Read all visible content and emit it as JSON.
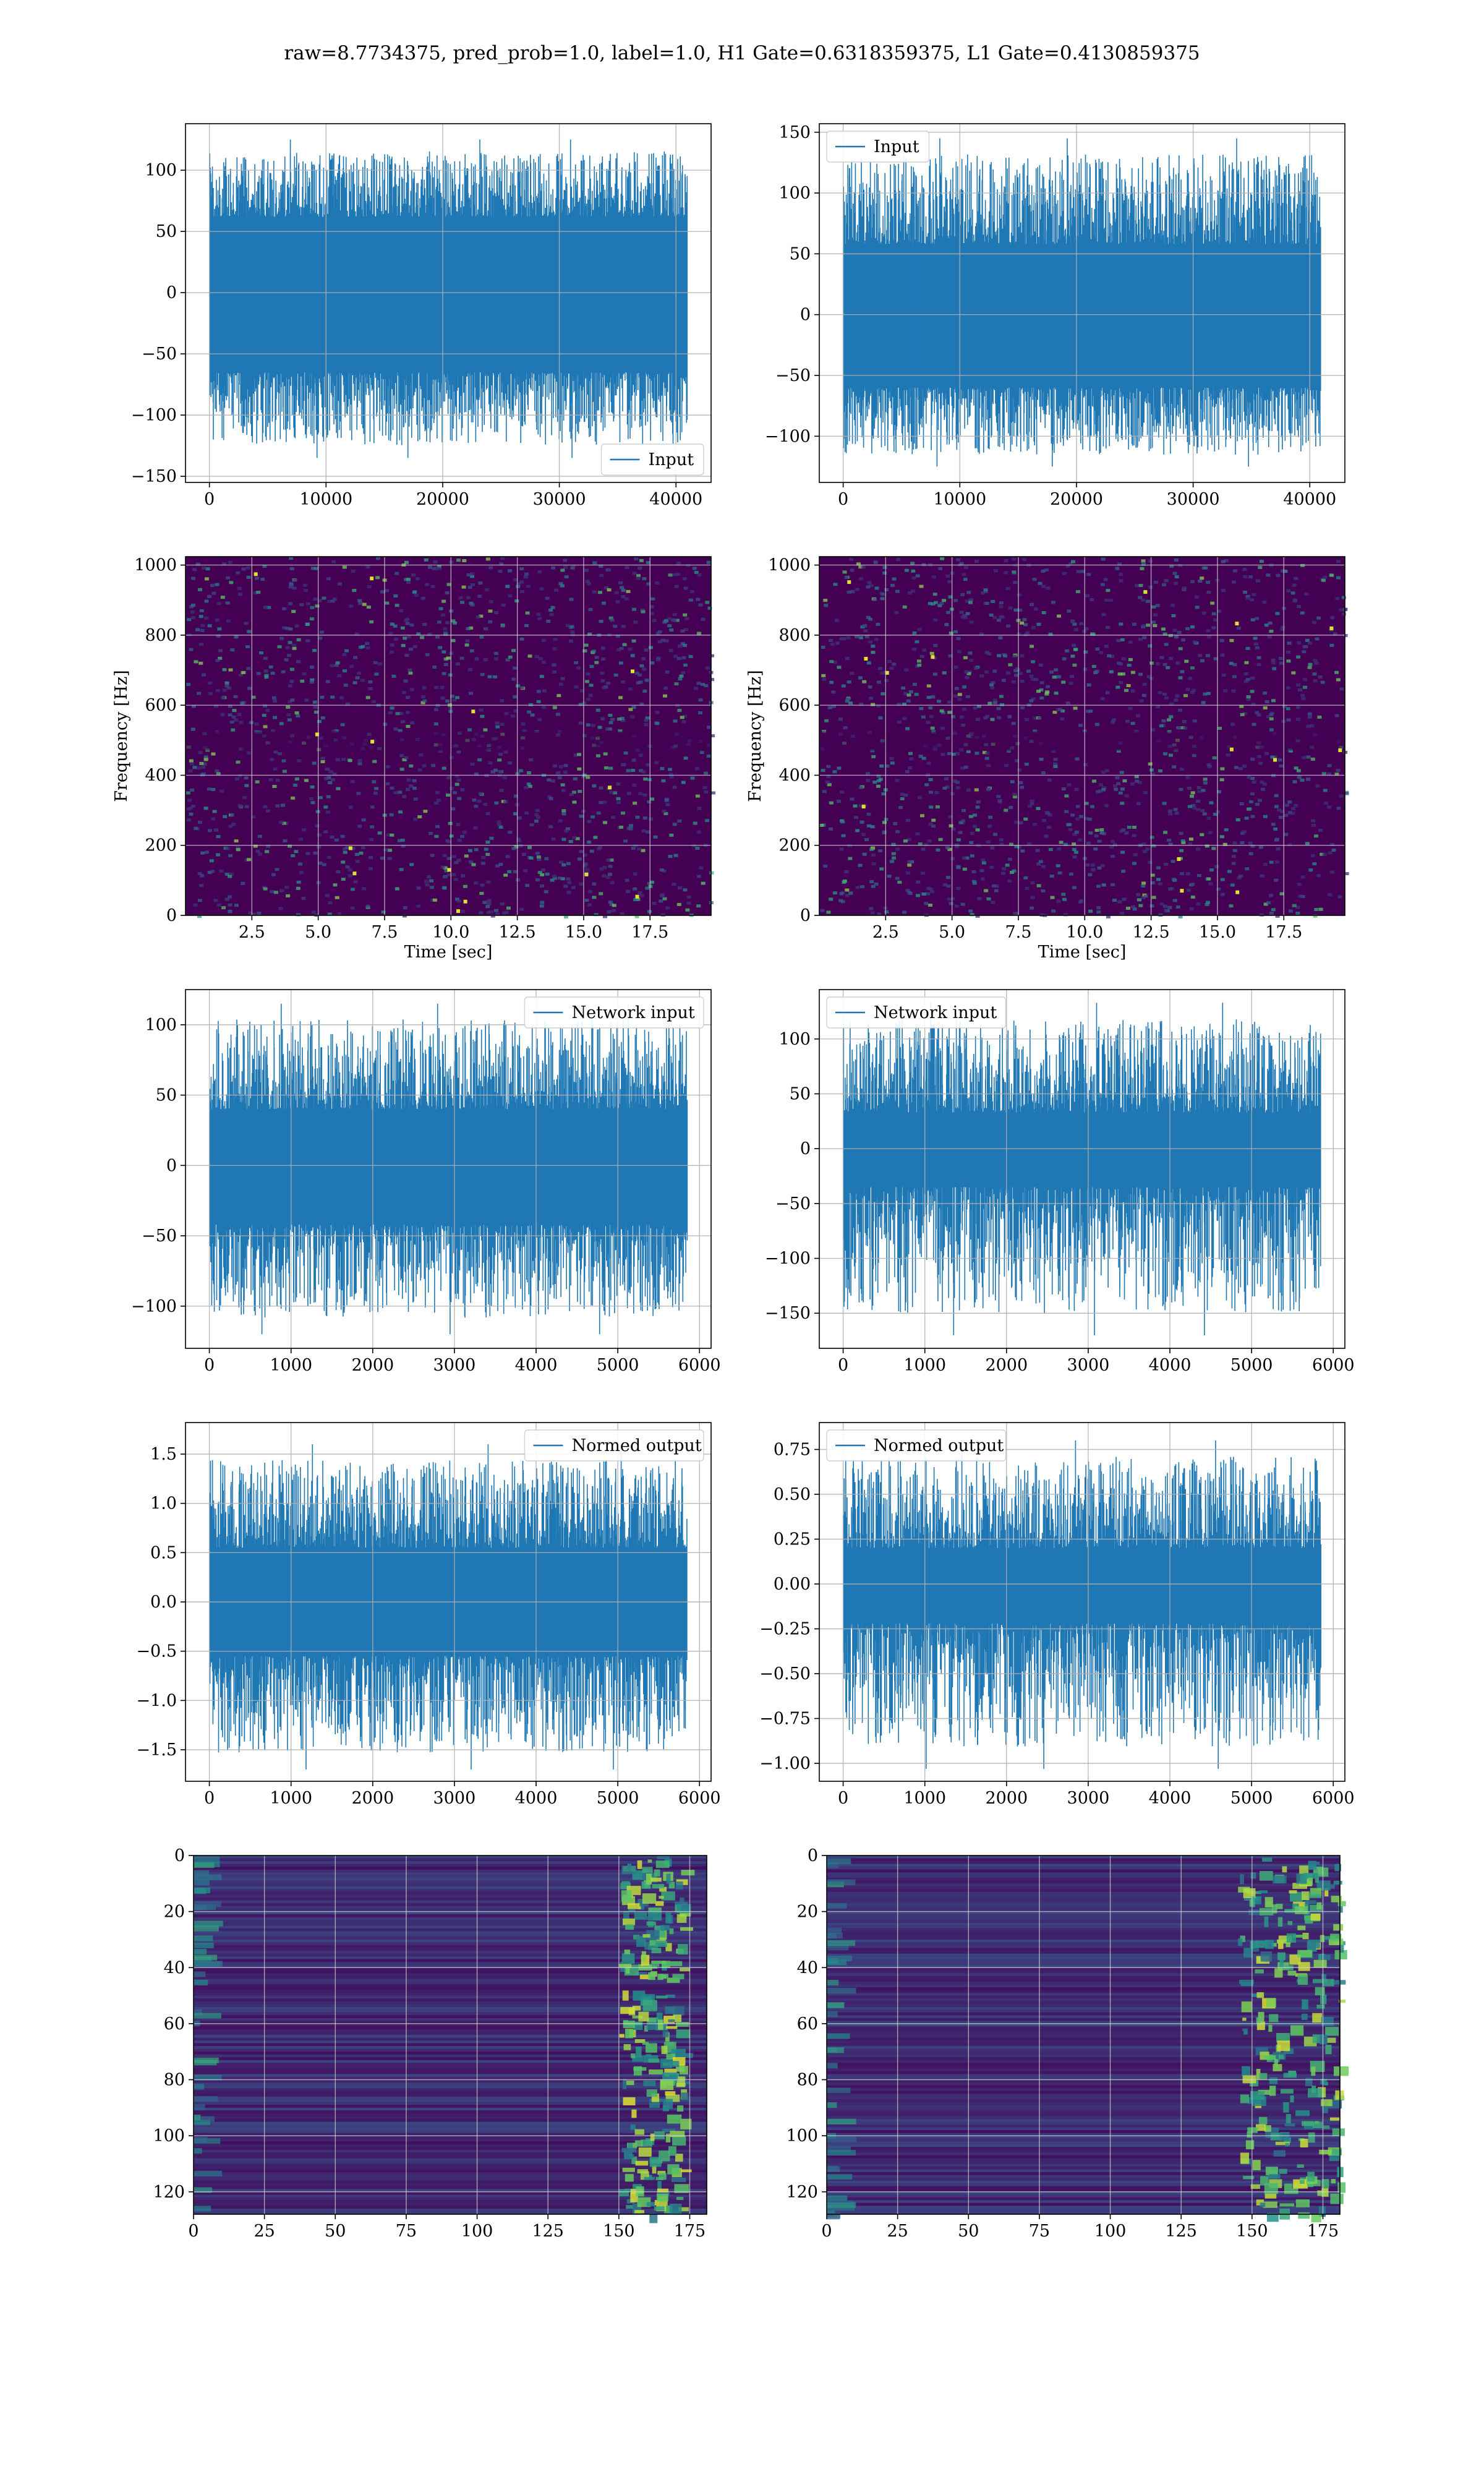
{
  "title": "raw=8.7734375, pred_prob=1.0, label=1.0, H1 Gate=0.6318359375, L1 Gate=0.4130859375",
  "colors": {
    "line": "#1f77b4",
    "grid": "#b0b0b0",
    "viridis_dark": "#440154",
    "viridis_mid": "#21918c",
    "viridis_bright": "#fde725"
  },
  "chart_data": [
    {
      "type": "line",
      "name": "input-h1",
      "grid": true,
      "legend": {
        "entries": [
          "Input"
        ],
        "loc": "lower right"
      },
      "x_range": [
        0,
        40960
      ],
      "xlim": [
        -2048,
        43008
      ],
      "ylim": [
        -155,
        138
      ],
      "xticks": [
        0,
        10000,
        20000,
        30000,
        40000
      ],
      "xticklabels": [
        "0",
        "10000",
        "20000",
        "30000",
        "40000"
      ],
      "yticks": [
        -150,
        -100,
        -50,
        0,
        50,
        100
      ],
      "yticklabels": [
        "−150",
        "−100",
        "−50",
        "0",
        "50",
        "100"
      ],
      "band": [
        -65,
        62
      ],
      "spike_range": [
        -135,
        125
      ],
      "xlabel": "",
      "ylabel": ""
    },
    {
      "type": "line",
      "name": "input-l1",
      "grid": true,
      "legend": {
        "entries": [
          "Input"
        ],
        "loc": "upper left"
      },
      "x_range": [
        0,
        40960
      ],
      "xlim": [
        -2048,
        43008
      ],
      "ylim": [
        -138,
        157
      ],
      "xticks": [
        0,
        10000,
        20000,
        30000,
        40000
      ],
      "xticklabels": [
        "0",
        "10000",
        "20000",
        "30000",
        "40000"
      ],
      "yticks": [
        -100,
        -50,
        0,
        50,
        100,
        150
      ],
      "yticklabels": [
        "−100",
        "−50",
        "0",
        "50",
        "100",
        "150"
      ],
      "band": [
        -60,
        58
      ],
      "spike_range": [
        -125,
        145
      ],
      "xlabel": "",
      "ylabel": ""
    },
    {
      "type": "heatmap",
      "name": "spectrogram-h1",
      "grid": true,
      "xlim": [
        0,
        19.8
      ],
      "ylim": [
        0,
        1024
      ],
      "xticks": [
        2.5,
        5,
        7.5,
        10,
        12.5,
        15,
        17.5
      ],
      "xticklabels": [
        "2.5",
        "5.0",
        "7.5",
        "10.0",
        "12.5",
        "15.0",
        "17.5"
      ],
      "yticks": [
        0,
        200,
        400,
        600,
        800,
        1000
      ],
      "yticklabels": [
        "0",
        "200",
        "400",
        "600",
        "800",
        "1000"
      ],
      "xlabel": "Time [sec]",
      "ylabel": "Frequency [Hz]",
      "colormap": "viridis"
    },
    {
      "type": "heatmap",
      "name": "spectrogram-l1",
      "grid": true,
      "xlim": [
        0,
        19.8
      ],
      "ylim": [
        0,
        1024
      ],
      "xticks": [
        2.5,
        5,
        7.5,
        10,
        12.5,
        15,
        17.5
      ],
      "xticklabels": [
        "2.5",
        "5.0",
        "7.5",
        "10.0",
        "12.5",
        "15.0",
        "17.5"
      ],
      "yticks": [
        0,
        200,
        400,
        600,
        800,
        1000
      ],
      "yticklabels": [
        "0",
        "200",
        "400",
        "600",
        "800",
        "1000"
      ],
      "xlabel": "Time [sec]",
      "ylabel": "Frequency [Hz]",
      "colormap": "viridis"
    },
    {
      "type": "line",
      "name": "network-input-h1",
      "grid": true,
      "legend": {
        "entries": [
          "Network input"
        ],
        "loc": "upper right"
      },
      "x_range": [
        0,
        5850
      ],
      "xlim": [
        -292,
        6142
      ],
      "ylim": [
        -130,
        125
      ],
      "xticks": [
        0,
        1000,
        2000,
        3000,
        4000,
        5000,
        6000
      ],
      "xticklabels": [
        "0",
        "1000",
        "2000",
        "3000",
        "4000",
        "5000",
        "6000"
      ],
      "yticks": [
        -100,
        -50,
        0,
        50,
        100
      ],
      "yticklabels": [
        "−100",
        "−50",
        "0",
        "50",
        "100"
      ],
      "band": [
        -42,
        40
      ],
      "spike_range": [
        -120,
        115
      ],
      "xlabel": "",
      "ylabel": ""
    },
    {
      "type": "line",
      "name": "network-input-l1",
      "grid": true,
      "legend": {
        "entries": [
          "Network input"
        ],
        "loc": "upper left"
      },
      "x_range": [
        0,
        5850
      ],
      "xlim": [
        -292,
        6142
      ],
      "ylim": [
        -182,
        145
      ],
      "xticks": [
        0,
        1000,
        2000,
        3000,
        4000,
        5000,
        6000
      ],
      "xticklabels": [
        "0",
        "1000",
        "2000",
        "3000",
        "4000",
        "5000",
        "6000"
      ],
      "yticks": [
        -150,
        -100,
        -50,
        0,
        50,
        100
      ],
      "yticklabels": [
        "−150",
        "−100",
        "−50",
        "0",
        "50",
        "100"
      ],
      "band": [
        -35,
        33
      ],
      "spike_range": [
        -170,
        133
      ],
      "xlabel": "",
      "ylabel": ""
    },
    {
      "type": "line",
      "name": "normed-output-h1",
      "grid": true,
      "legend": {
        "entries": [
          "Normed output"
        ],
        "loc": "upper right"
      },
      "x_range": [
        0,
        5850
      ],
      "xlim": [
        -292,
        6142
      ],
      "ylim": [
        -1.82,
        1.82
      ],
      "xticks": [
        0,
        1000,
        2000,
        3000,
        4000,
        5000,
        6000
      ],
      "xticklabels": [
        "0",
        "1000",
        "2000",
        "3000",
        "4000",
        "5000",
        "6000"
      ],
      "yticks": [
        -1.5,
        -1.0,
        -0.5,
        0.0,
        0.5,
        1.0,
        1.5
      ],
      "yticklabels": [
        "−1.5",
        "−1.0",
        "−0.5",
        "0.0",
        "0.5",
        "1.0",
        "1.5"
      ],
      "band": [
        -0.55,
        0.55
      ],
      "spike_range": [
        -1.7,
        1.6
      ],
      "xlabel": "",
      "ylabel": ""
    },
    {
      "type": "line",
      "name": "normed-output-l1",
      "grid": true,
      "legend": {
        "entries": [
          "Normed output"
        ],
        "loc": "upper left"
      },
      "x_range": [
        0,
        5850
      ],
      "xlim": [
        -292,
        6142
      ],
      "ylim": [
        -1.1,
        0.9
      ],
      "xticks": [
        0,
        1000,
        2000,
        3000,
        4000,
        5000,
        6000
      ],
      "xticklabels": [
        "0",
        "1000",
        "2000",
        "3000",
        "4000",
        "5000",
        "6000"
      ],
      "yticks": [
        -1.0,
        -0.75,
        -0.5,
        -0.25,
        0.0,
        0.25,
        0.5,
        0.75
      ],
      "yticklabels": [
        "−1.00",
        "−0.75",
        "−0.50",
        "−0.25",
        "0.00",
        "0.25",
        "0.50",
        "0.75"
      ],
      "band": [
        -0.22,
        0.2
      ],
      "spike_range": [
        -1.03,
        0.8
      ],
      "xlabel": "",
      "ylabel": ""
    },
    {
      "type": "heatmap",
      "name": "feature-map-h1",
      "grid": true,
      "inverted_y": true,
      "xlim": [
        0,
        181
      ],
      "ylim": [
        128,
        0
      ],
      "xticks": [
        0,
        25,
        50,
        75,
        100,
        125,
        150,
        175
      ],
      "xticklabels": [
        "0",
        "25",
        "50",
        "75",
        "100",
        "125",
        "150",
        "175"
      ],
      "yticks": [
        0,
        20,
        40,
        60,
        80,
        100,
        120
      ],
      "yticklabels": [
        "0",
        "20",
        "40",
        "60",
        "80",
        "100",
        "120"
      ],
      "xlabel": "",
      "ylabel": "",
      "colormap": "viridis",
      "hot_columns": [
        150,
        172
      ]
    },
    {
      "type": "heatmap",
      "name": "feature-map-l1",
      "grid": true,
      "inverted_y": true,
      "xlim": [
        0,
        181
      ],
      "ylim": [
        128,
        0
      ],
      "xticks": [
        0,
        25,
        50,
        75,
        100,
        125,
        150,
        175
      ],
      "xticklabels": [
        "0",
        "25",
        "50",
        "75",
        "100",
        "125",
        "150",
        "175"
      ],
      "yticks": [
        0,
        20,
        40,
        60,
        80,
        100,
        120
      ],
      "yticklabels": [
        "0",
        "20",
        "40",
        "60",
        "80",
        "100",
        "120"
      ],
      "xlabel": "",
      "ylabel": "",
      "colormap": "viridis",
      "hot_columns": [
        145,
        181
      ]
    }
  ]
}
